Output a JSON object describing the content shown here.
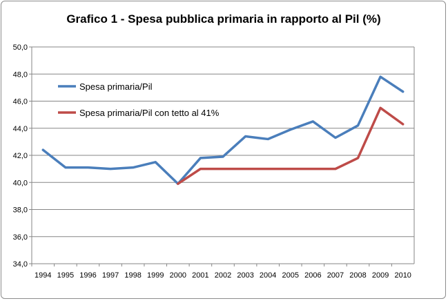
{
  "chart_data": {
    "type": "line",
    "title": "Grafico 1 - Spesa pubblica primaria in rapporto al Pil (%)",
    "xlabel": "",
    "ylabel": "",
    "categories": [
      "1994",
      "1995",
      "1996",
      "1997",
      "1998",
      "1999",
      "2000",
      "2001",
      "2002",
      "2003",
      "2004",
      "2005",
      "2006",
      "2007",
      "2008",
      "2009",
      "2010"
    ],
    "ylim": [
      34,
      50
    ],
    "yticks": [
      "34,0",
      "36,0",
      "38,0",
      "40,0",
      "42,0",
      "44,0",
      "46,0",
      "48,0",
      "50,0"
    ],
    "grid": true,
    "legend_position": "upper-left",
    "series": [
      {
        "name": "Spesa primaria/Pil",
        "color": "#4a7ebb",
        "values": [
          42.4,
          41.1,
          41.1,
          41.0,
          41.1,
          41.5,
          39.9,
          41.8,
          41.9,
          43.4,
          43.2,
          43.9,
          44.5,
          43.3,
          44.2,
          47.8,
          46.7
        ]
      },
      {
        "name": "Spesa primaria/Pil con tetto al 41%",
        "color": "#be4b48",
        "values": [
          null,
          null,
          null,
          null,
          null,
          null,
          39.9,
          41.0,
          41.0,
          41.0,
          41.0,
          41.0,
          41.0,
          41.0,
          41.8,
          45.5,
          44.3
        ]
      }
    ]
  }
}
